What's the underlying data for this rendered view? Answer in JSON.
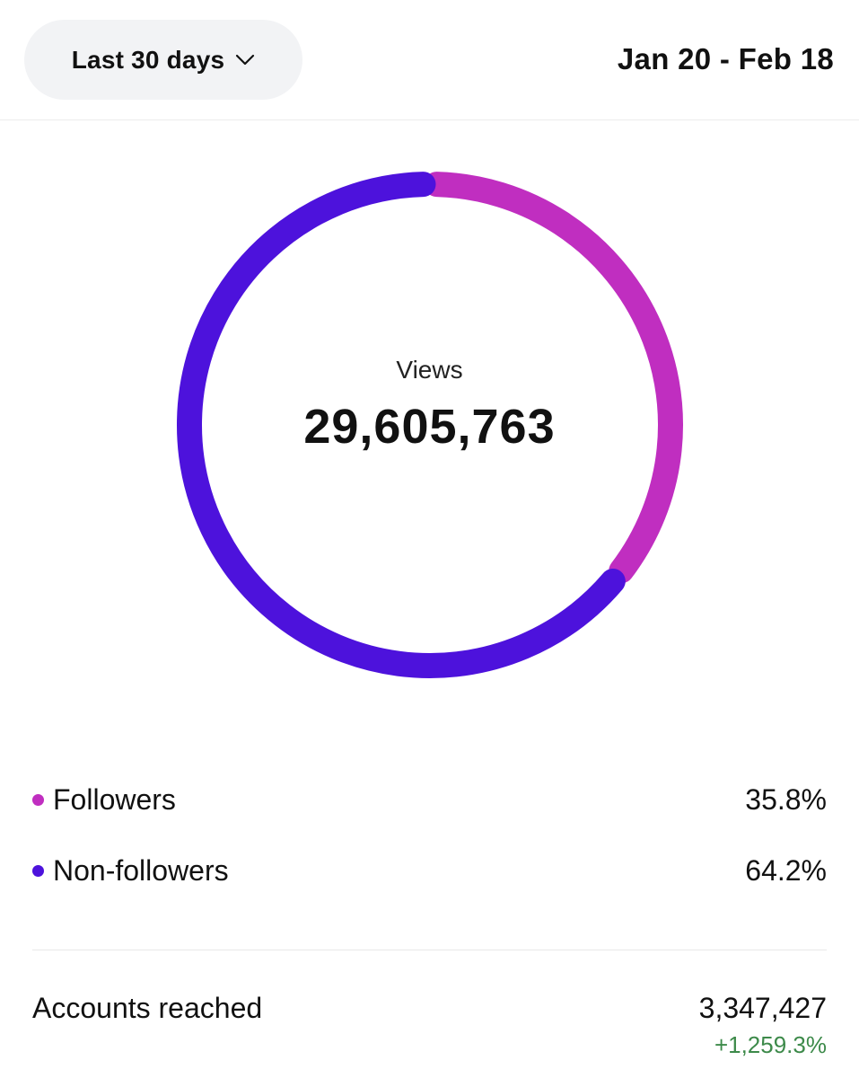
{
  "header": {
    "range_label": "Last 30 days",
    "date_range": "Jan 20 - Feb 18"
  },
  "summary": {
    "label": "Views",
    "value": "29,605,763"
  },
  "colors": {
    "followers": "#c02ec0",
    "non_followers": "#4d12dc",
    "positive_change": "#3d8a4a"
  },
  "icons": {
    "range_chevron": "chevron-down-icon"
  },
  "breakdown": [
    {
      "label": "Followers",
      "percent_text": "35.8%",
      "percent": 35.8,
      "color_key": "followers"
    },
    {
      "label": "Non-followers",
      "percent_text": "64.2%",
      "percent": 64.2,
      "color_key": "non_followers"
    }
  ],
  "metrics": {
    "accounts_reached": {
      "label": "Accounts reached",
      "value": "3,347,427",
      "change": "+1,259.3%"
    }
  }
}
